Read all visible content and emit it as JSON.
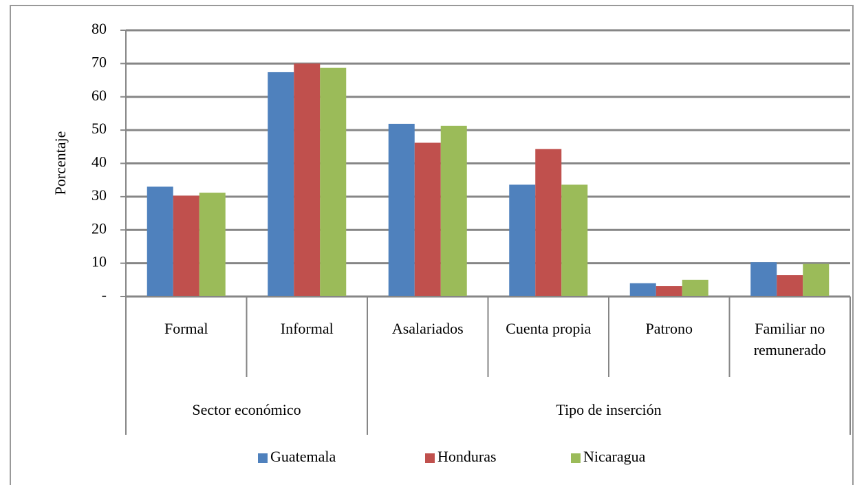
{
  "chart_data": {
    "type": "bar",
    "y_label": "Porcentaje",
    "groups": [
      {
        "name": "Sector económico",
        "categories": [
          "Formal",
          "Informal"
        ]
      },
      {
        "name": "Tipo de inserción",
        "categories": [
          "Asalariados",
          "Cuenta propia",
          "Patrono",
          "Familiar no remunerado"
        ]
      }
    ],
    "series": [
      {
        "name": "Guatemala",
        "color": "#4f81bd",
        "values": [
          33,
          67.4,
          51.9,
          33.6,
          4,
          10.3
        ]
      },
      {
        "name": "Honduras",
        "color": "#c0504d",
        "values": [
          30.3,
          70,
          46.2,
          44.3,
          3.1,
          6.4
        ]
      },
      {
        "name": "Nicaragua",
        "color": "#9bbb59",
        "values": [
          31.2,
          68.7,
          51.3,
          33.6,
          5,
          9.8
        ]
      }
    ],
    "ylim": [
      0,
      80
    ],
    "yticks": [
      {
        "value": 0,
        "label": "-"
      },
      10,
      20,
      30,
      40,
      50,
      60,
      70,
      80
    ],
    "grid": true,
    "legend": "bottom"
  }
}
